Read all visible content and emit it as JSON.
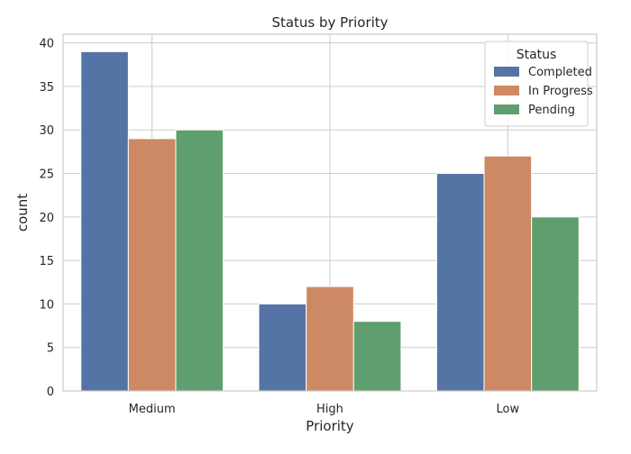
{
  "chart_data": {
    "type": "bar",
    "title": "Status by Priority",
    "xlabel": "Priority",
    "ylabel": "count",
    "categories": [
      "Medium",
      "High",
      "Low"
    ],
    "series": [
      {
        "name": "Completed",
        "values": [
          39,
          10,
          25
        ],
        "color": "#5574a6"
      },
      {
        "name": "In Progress",
        "values": [
          29,
          12,
          27
        ],
        "color": "#cc8963"
      },
      {
        "name": "Pending",
        "values": [
          30,
          8,
          20
        ],
        "color": "#5f9e6e"
      }
    ],
    "ylim": [
      0,
      41
    ],
    "yticks": [
      0,
      5,
      10,
      15,
      20,
      25,
      30,
      35,
      40
    ],
    "grid": true,
    "legend": {
      "title": "Status",
      "position": "top-right"
    }
  }
}
